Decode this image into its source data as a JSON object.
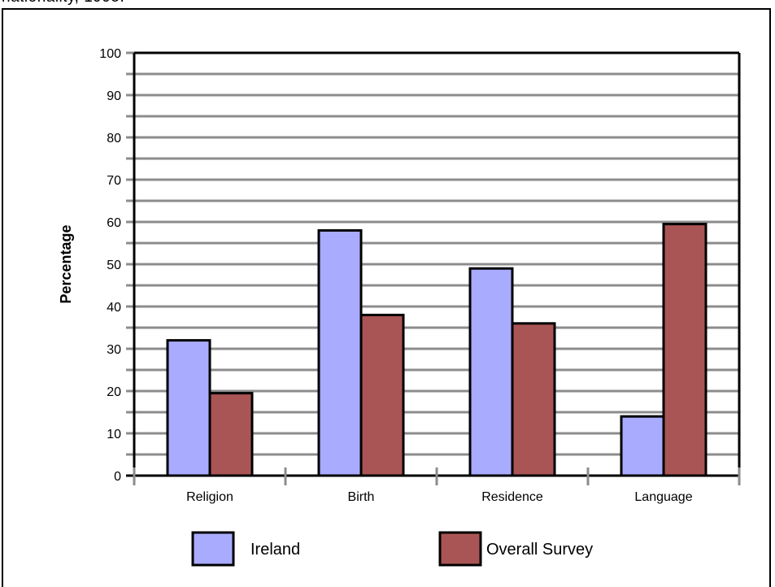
{
  "chart_data": {
    "type": "bar",
    "title": "nationality, 1995.",
    "xlabel": "",
    "ylabel": "Percentage",
    "ylim": [
      0,
      100
    ],
    "yticks": [
      0,
      10,
      20,
      30,
      40,
      50,
      60,
      70,
      80,
      90,
      100
    ],
    "categories": [
      "Religion",
      "Birth",
      "Residence",
      "Language"
    ],
    "grid": true,
    "legend_position": "bottom",
    "series": [
      {
        "name": "Ireland",
        "color": "#a9abff",
        "values": [
          32,
          58,
          49,
          14
        ]
      },
      {
        "name": "Overall Survey",
        "color": "#aa5555",
        "values": [
          19.5,
          38,
          36,
          59.5
        ]
      }
    ]
  }
}
